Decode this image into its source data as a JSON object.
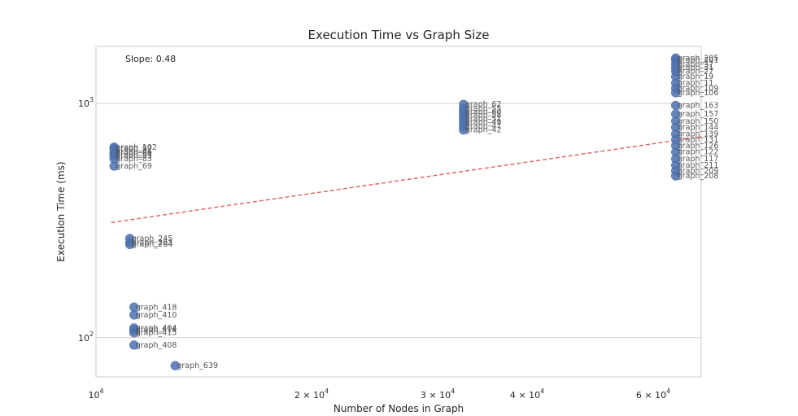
{
  "chart_data": {
    "type": "scatter",
    "title": "Execution Time vs Graph Size",
    "xlabel": "Number of Nodes in Graph",
    "ylabel": "Execution Time (ms)",
    "x_scale": "log",
    "y_scale": "log",
    "xlim": [
      10000,
      70000
    ],
    "ylim": [
      68,
      1750
    ],
    "grid": true,
    "x_ticks": [
      {
        "value": 10000,
        "mantissa": "",
        "base": "10",
        "exp": "4"
      },
      {
        "value": 20000,
        "mantissa": "2 × ",
        "base": "10",
        "exp": "4"
      },
      {
        "value": 30000,
        "mantissa": "3 × ",
        "base": "10",
        "exp": "4"
      },
      {
        "value": 40000,
        "mantissa": "4 × ",
        "base": "10",
        "exp": "4"
      },
      {
        "value": 60000,
        "mantissa": "6 × ",
        "base": "10",
        "exp": "4"
      }
    ],
    "y_ticks": [
      {
        "value": 100,
        "base": "10",
        "exp": "2"
      },
      {
        "value": 1000,
        "base": "10",
        "exp": "3"
      }
    ],
    "annotation": "Slope: 0.48",
    "trendline": {
      "slope": 0.48,
      "x": [
        10500,
        70000
      ],
      "y": [
        310,
        720
      ]
    },
    "points": [
      {
        "x": 10600,
        "y": 650,
        "label": "graph_102"
      },
      {
        "x": 10600,
        "y": 640,
        "label": "graph_97"
      },
      {
        "x": 10600,
        "y": 620,
        "label": "graph_86"
      },
      {
        "x": 10600,
        "y": 610,
        "label": "graph_84"
      },
      {
        "x": 10600,
        "y": 600,
        "label": "graph_93"
      },
      {
        "x": 10600,
        "y": 580,
        "label": "graph_83"
      },
      {
        "x": 10600,
        "y": 540,
        "label": "graph_69"
      },
      {
        "x": 11150,
        "y": 265,
        "label": "graph_245"
      },
      {
        "x": 11150,
        "y": 255,
        "label": "graph_263"
      },
      {
        "x": 11150,
        "y": 250,
        "label": "graph_264"
      },
      {
        "x": 11300,
        "y": 135,
        "label": "graph_418"
      },
      {
        "x": 11300,
        "y": 125,
        "label": "graph_410"
      },
      {
        "x": 11300,
        "y": 110,
        "label": "graph_404"
      },
      {
        "x": 11300,
        "y": 108,
        "label": "graph_414"
      },
      {
        "x": 11300,
        "y": 105,
        "label": "graph_415"
      },
      {
        "x": 11300,
        "y": 93,
        "label": "graph_408"
      },
      {
        "x": 12900,
        "y": 76,
        "label": "graph_639"
      },
      {
        "x": 32600,
        "y": 990,
        "label": "graph_62"
      },
      {
        "x": 32600,
        "y": 950,
        "label": "graph_55"
      },
      {
        "x": 32600,
        "y": 920,
        "label": "graph_60"
      },
      {
        "x": 32600,
        "y": 890,
        "label": "graph_58"
      },
      {
        "x": 32600,
        "y": 860,
        "label": "graph_51"
      },
      {
        "x": 32600,
        "y": 830,
        "label": "graph_49"
      },
      {
        "x": 32600,
        "y": 800,
        "label": "graph_47"
      },
      {
        "x": 32600,
        "y": 770,
        "label": "graph_42"
      },
      {
        "x": 64500,
        "y": 1560,
        "label": "graph_205"
      },
      {
        "x": 64500,
        "y": 1530,
        "label": "graph_201"
      },
      {
        "x": 64500,
        "y": 1470,
        "label": "graph_37"
      },
      {
        "x": 64500,
        "y": 1420,
        "label": "graph_31"
      },
      {
        "x": 64500,
        "y": 1370,
        "label": "graph_27"
      },
      {
        "x": 64500,
        "y": 1300,
        "label": "graph_19"
      },
      {
        "x": 64500,
        "y": 1220,
        "label": "graph_11"
      },
      {
        "x": 64500,
        "y": 1160,
        "label": "graph_109"
      },
      {
        "x": 64500,
        "y": 1110,
        "label": "graph_106"
      },
      {
        "x": 64500,
        "y": 980,
        "label": "graph_163"
      },
      {
        "x": 64500,
        "y": 900,
        "label": "graph_157"
      },
      {
        "x": 64500,
        "y": 840,
        "label": "graph_150"
      },
      {
        "x": 64500,
        "y": 790,
        "label": "graph_144"
      },
      {
        "x": 64500,
        "y": 740,
        "label": "graph_139"
      },
      {
        "x": 64500,
        "y": 700,
        "label": "graph_131"
      },
      {
        "x": 64500,
        "y": 660,
        "label": "graph_126"
      },
      {
        "x": 64500,
        "y": 620,
        "label": "graph_122"
      },
      {
        "x": 64500,
        "y": 580,
        "label": "graph_117"
      },
      {
        "x": 64500,
        "y": 545,
        "label": "graph_211"
      },
      {
        "x": 64500,
        "y": 515,
        "label": "graph_209"
      },
      {
        "x": 64500,
        "y": 490,
        "label": "graph_208"
      }
    ]
  }
}
